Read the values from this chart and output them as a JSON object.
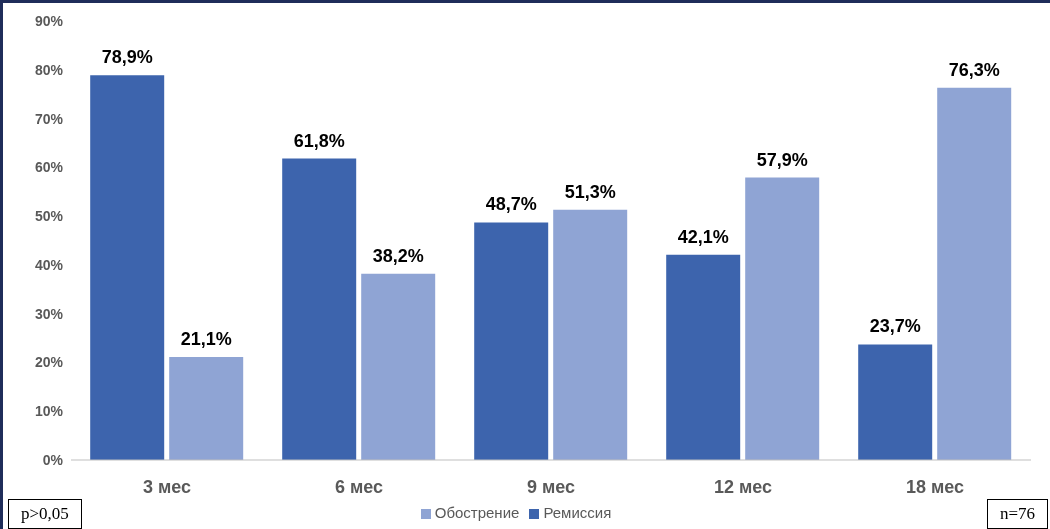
{
  "chart_data": {
    "type": "bar",
    "categories": [
      "3 мес",
      "6 мес",
      "9 мес",
      "12 мес",
      "18 мес"
    ],
    "series": [
      {
        "name": "Ремиссия",
        "color": "#3d64ad",
        "values": [
          78.9,
          61.8,
          48.7,
          42.1,
          23.7
        ],
        "value_labels": [
          "78,9%",
          "61,8%",
          "48,7%",
          "42,1%",
          "23,7%"
        ]
      },
      {
        "name": "Обострение",
        "color": "#8fa4d4",
        "values": [
          21.1,
          38.2,
          51.3,
          57.9,
          76.3
        ],
        "value_labels": [
          "21,1%",
          "38,2%",
          "51,3%",
          "57,9%",
          "76,3%"
        ]
      }
    ],
    "ylim": [
      0,
      90
    ],
    "yticks": [
      {
        "value": 0,
        "label": "0%"
      },
      {
        "value": 10,
        "label": "10%"
      },
      {
        "value": 20,
        "label": "20%"
      },
      {
        "value": 30,
        "label": "30%"
      },
      {
        "value": 40,
        "label": "40%"
      },
      {
        "value": 50,
        "label": "50%"
      },
      {
        "value": 60,
        "label": "60%"
      },
      {
        "value": 70,
        "label": "70%"
      },
      {
        "value": 80,
        "label": "80%"
      },
      {
        "value": 90,
        "label": "90%"
      }
    ],
    "grid": false,
    "legend": "bottom",
    "annotations": [
      "p>0,05",
      "n=76"
    ]
  }
}
